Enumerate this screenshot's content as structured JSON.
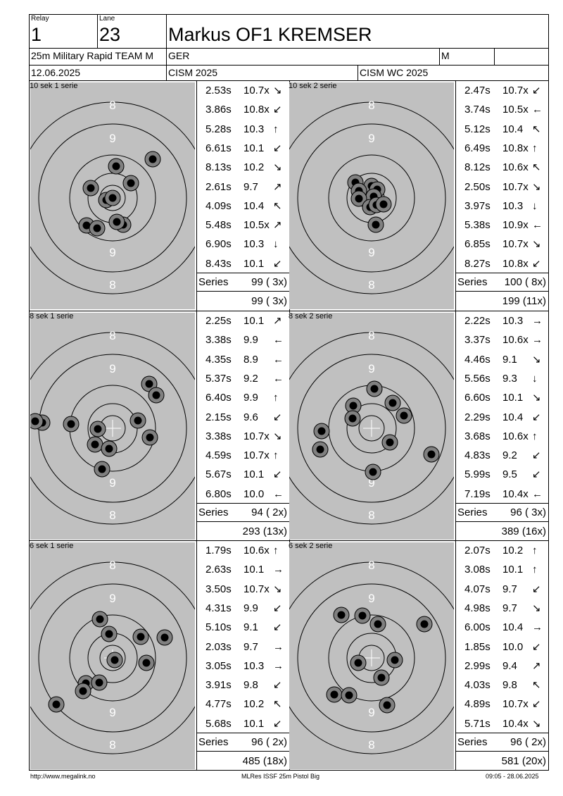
{
  "header": {
    "relay_label": "Relay",
    "relay": "1",
    "lane_label": "Lane",
    "lane": "23",
    "shooter_name": "Markus OF1 KREMSER",
    "event": "25m Military Rapid TEAM M",
    "nation": "GER",
    "gender": "M",
    "date": "12.06.2025",
    "competition": "CISM 2025",
    "match": "CISM WC 2025"
  },
  "series_label": "Series",
  "panels": [
    {
      "title": "10 sek 1 serie",
      "shots": [
        {
          "time": "2.53s",
          "score": "10.7x",
          "dir": "↘"
        },
        {
          "time": "3.86s",
          "score": "10.8x",
          "dir": "↙"
        },
        {
          "time": "5.28s",
          "score": "10.3",
          "dir": "↑"
        },
        {
          "time": "6.61s",
          "score": "10.1",
          "dir": "↙"
        },
        {
          "time": "8.13s",
          "score": "10.2",
          "dir": "↘"
        },
        {
          "time": "2.61s",
          "score": "9.7",
          "dir": "↗"
        },
        {
          "time": "4.09s",
          "score": "10.4",
          "dir": "↖"
        },
        {
          "time": "5.48s",
          "score": "10.5x",
          "dir": "↗"
        },
        {
          "time": "6.90s",
          "score": "10.3",
          "dir": "↓"
        },
        {
          "time": "8.43s",
          "score": "10.1",
          "dir": "↙"
        }
      ],
      "series_total": "99 ( 3x)",
      "running_total": "99 ( 3x)"
    },
    {
      "title": "10 sek 2 serie",
      "shots": [
        {
          "time": "2.47s",
          "score": "10.7x",
          "dir": "↙"
        },
        {
          "time": "3.74s",
          "score": "10.5x",
          "dir": "←"
        },
        {
          "time": "5.12s",
          "score": "10.4",
          "dir": "↖"
        },
        {
          "time": "6.49s",
          "score": "10.8x",
          "dir": "↑"
        },
        {
          "time": "8.12s",
          "score": "10.6x",
          "dir": "↖"
        },
        {
          "time": "2.50s",
          "score": "10.7x",
          "dir": "↘"
        },
        {
          "time": "3.97s",
          "score": "10.3",
          "dir": "↓"
        },
        {
          "time": "5.38s",
          "score": "10.9x",
          "dir": "←"
        },
        {
          "time": "6.85s",
          "score": "10.7x",
          "dir": "↘"
        },
        {
          "time": "8.27s",
          "score": "10.8x",
          "dir": "↙"
        }
      ],
      "series_total": "100 ( 8x)",
      "running_total": "199 (11x)"
    },
    {
      "title": "8 sek 1 serie",
      "shots": [
        {
          "time": "2.25s",
          "score": "10.1",
          "dir": "↗"
        },
        {
          "time": "3.38s",
          "score": "9.9",
          "dir": "←"
        },
        {
          "time": "4.35s",
          "score": "8.9",
          "dir": "←"
        },
        {
          "time": "5.37s",
          "score": "9.2",
          "dir": "←"
        },
        {
          "time": "6.40s",
          "score": "9.9",
          "dir": "↑"
        },
        {
          "time": "2.15s",
          "score": "9.6",
          "dir": "↙"
        },
        {
          "time": "3.38s",
          "score": "10.7x",
          "dir": "↘"
        },
        {
          "time": "4.59s",
          "score": "10.7x",
          "dir": "↑"
        },
        {
          "time": "5.67s",
          "score": "10.1",
          "dir": "↙"
        },
        {
          "time": "6.80s",
          "score": "10.0",
          "dir": "←"
        }
      ],
      "series_total": "94 ( 2x)",
      "running_total": "293 (13x)"
    },
    {
      "title": "8 sek 2 serie",
      "shots": [
        {
          "time": "2.22s",
          "score": "10.3",
          "dir": "→"
        },
        {
          "time": "3.37s",
          "score": "10.6x",
          "dir": "→"
        },
        {
          "time": "4.46s",
          "score": "9.1",
          "dir": "↘"
        },
        {
          "time": "5.56s",
          "score": "9.3",
          "dir": "↓"
        },
        {
          "time": "6.60s",
          "score": "10.1",
          "dir": "↘"
        },
        {
          "time": "2.29s",
          "score": "10.4",
          "dir": "↙"
        },
        {
          "time": "3.68s",
          "score": "10.6x",
          "dir": "↑"
        },
        {
          "time": "4.83s",
          "score": "9.2",
          "dir": "↙"
        },
        {
          "time": "5.99s",
          "score": "9.5",
          "dir": "↙"
        },
        {
          "time": "7.19s",
          "score": "10.4x",
          "dir": "←"
        }
      ],
      "series_total": "96 ( 3x)",
      "running_total": "389 (16x)"
    },
    {
      "title": "6 sek 1 serie",
      "shots": [
        {
          "time": "1.79s",
          "score": "10.6x",
          "dir": "↑"
        },
        {
          "time": "2.63s",
          "score": "10.1",
          "dir": "→"
        },
        {
          "time": "3.50s",
          "score": "10.7x",
          "dir": "↘"
        },
        {
          "time": "4.31s",
          "score": "9.9",
          "dir": "↙"
        },
        {
          "time": "5.10s",
          "score": "9.1",
          "dir": "↙"
        },
        {
          "time": "2.03s",
          "score": "9.7",
          "dir": "→"
        },
        {
          "time": "3.05s",
          "score": "10.3",
          "dir": "→"
        },
        {
          "time": "3.91s",
          "score": "9.8",
          "dir": "↙"
        },
        {
          "time": "4.77s",
          "score": "10.2",
          "dir": "↖"
        },
        {
          "time": "5.68s",
          "score": "10.1",
          "dir": "↙"
        }
      ],
      "series_total": "96 ( 2x)",
      "running_total": "485 (18x)"
    },
    {
      "title": "6 sek 2 serie",
      "shots": [
        {
          "time": "2.07s",
          "score": "10.2",
          "dir": "↑"
        },
        {
          "time": "3.08s",
          "score": "10.1",
          "dir": "↑"
        },
        {
          "time": "4.07s",
          "score": "9.7",
          "dir": "↙"
        },
        {
          "time": "4.98s",
          "score": "9.7",
          "dir": "↘"
        },
        {
          "time": "6.00s",
          "score": "10.4",
          "dir": "→"
        },
        {
          "time": "1.85s",
          "score": "10.0",
          "dir": "↙"
        },
        {
          "time": "2.99s",
          "score": "9.4",
          "dir": "↗"
        },
        {
          "time": "4.03s",
          "score": "9.8",
          "dir": "↖"
        },
        {
          "time": "4.89s",
          "score": "10.7x",
          "dir": "↙"
        },
        {
          "time": "5.71s",
          "score": "10.4x",
          "dir": "↘"
        }
      ],
      "series_total": "96 ( 2x)",
      "running_total": "581 (20x)"
    }
  ],
  "target": {
    "ring_labels_top": [
      "8",
      "9"
    ],
    "ring_labels_bottom": [
      "9",
      "8"
    ],
    "colors": {
      "target_face": "#c0c0c0",
      "hit_outer": "#808080",
      "hit_inner": "#000000",
      "ring_line": "#000000",
      "cross": "#ffffff"
    }
  },
  "footer": {
    "website": "http://www.megalink.no",
    "software": "MLRes ISSF 25m Pistol Big",
    "timestamp": "09:05 - 28.06.2025"
  }
}
